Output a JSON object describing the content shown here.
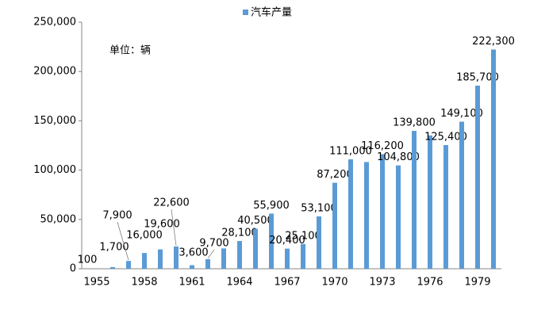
{
  "chart_data": {
    "type": "bar",
    "legend": "汽车产量",
    "annotation": "单位：辆",
    "color": "#5b9bd5",
    "categories": [
      "1955",
      null,
      null,
      "1958",
      null,
      null,
      "1961",
      null,
      null,
      "1964",
      null,
      null,
      "1967",
      null,
      null,
      "1970",
      null,
      null,
      "1973",
      null,
      null,
      "1976",
      null,
      null,
      "1979",
      null
    ],
    "values": [
      100,
      1700,
      7900,
      16000,
      19600,
      22600,
      3600,
      9700,
      20600,
      28100,
      40500,
      55900,
      20400,
      25100,
      53100,
      87200,
      111000,
      108200,
      116200,
      104800,
      139800,
      135200,
      125400,
      149100,
      185700,
      222300
    ],
    "value_labels": [
      "100",
      "1,700",
      "7,900",
      "16,000",
      "19,600",
      "22,600",
      "3,600",
      "9,700",
      null,
      "28,100",
      "40,500",
      "55,900",
      "20,400",
      "25,100",
      "53,100",
      "87,200",
      "111,000",
      null,
      "116,200",
      "104,800",
      "139,800",
      null,
      "125,400",
      "149,100",
      "185,700",
      "222,300"
    ],
    "ylim": [
      0,
      250000
    ],
    "yticks": [
      0,
      {
        "value": 50000,
        "label": "50,000"
      },
      {
        "value": 100000,
        "label": "100,000"
      },
      {
        "value": 150000,
        "label": "150,000"
      },
      {
        "value": 200000,
        "label": "200,000"
      },
      {
        "value": 250000,
        "label": "250,000"
      }
    ],
    "grid": false
  }
}
